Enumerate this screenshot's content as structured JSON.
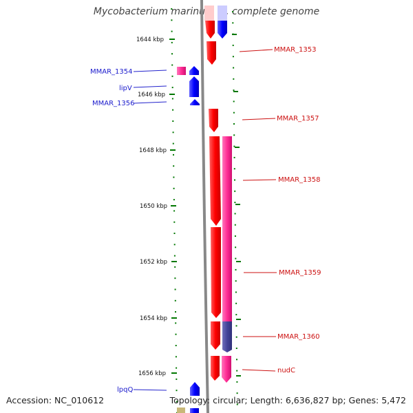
{
  "title": "Mycobacterium marinum M, complete genome",
  "footer": {
    "accession": "Accession: NC_010612",
    "summary": "Topology: circular; Length: 6,636,827 bp; Genes: 5,472"
  },
  "scale": {
    "unit": "kbp",
    "ticks": [
      "1644 kbp",
      "1646 kbp",
      "1648 kbp",
      "1650 kbp",
      "1652 kbp",
      "1654 kbp",
      "1656 kbp"
    ]
  },
  "genes_left": [
    {
      "name": "MMAR_1354"
    },
    {
      "name": "lipV"
    },
    {
      "name": "MMAR_1356"
    },
    {
      "name": "lpqQ"
    }
  ],
  "genes_right": [
    {
      "name": "MMAR_1353"
    },
    {
      "name": "MMAR_1357"
    },
    {
      "name": "MMAR_1358"
    },
    {
      "name": "MMAR_1359"
    },
    {
      "name": "MMAR_1360"
    },
    {
      "name": "nudC"
    }
  ],
  "colors": {
    "forward_strand": "#ff0000",
    "reverse_strand": "#0000ff",
    "magenta": "#ff3399",
    "purple": "#4a4a99",
    "backbone": "#888888",
    "tick": "#007700"
  }
}
